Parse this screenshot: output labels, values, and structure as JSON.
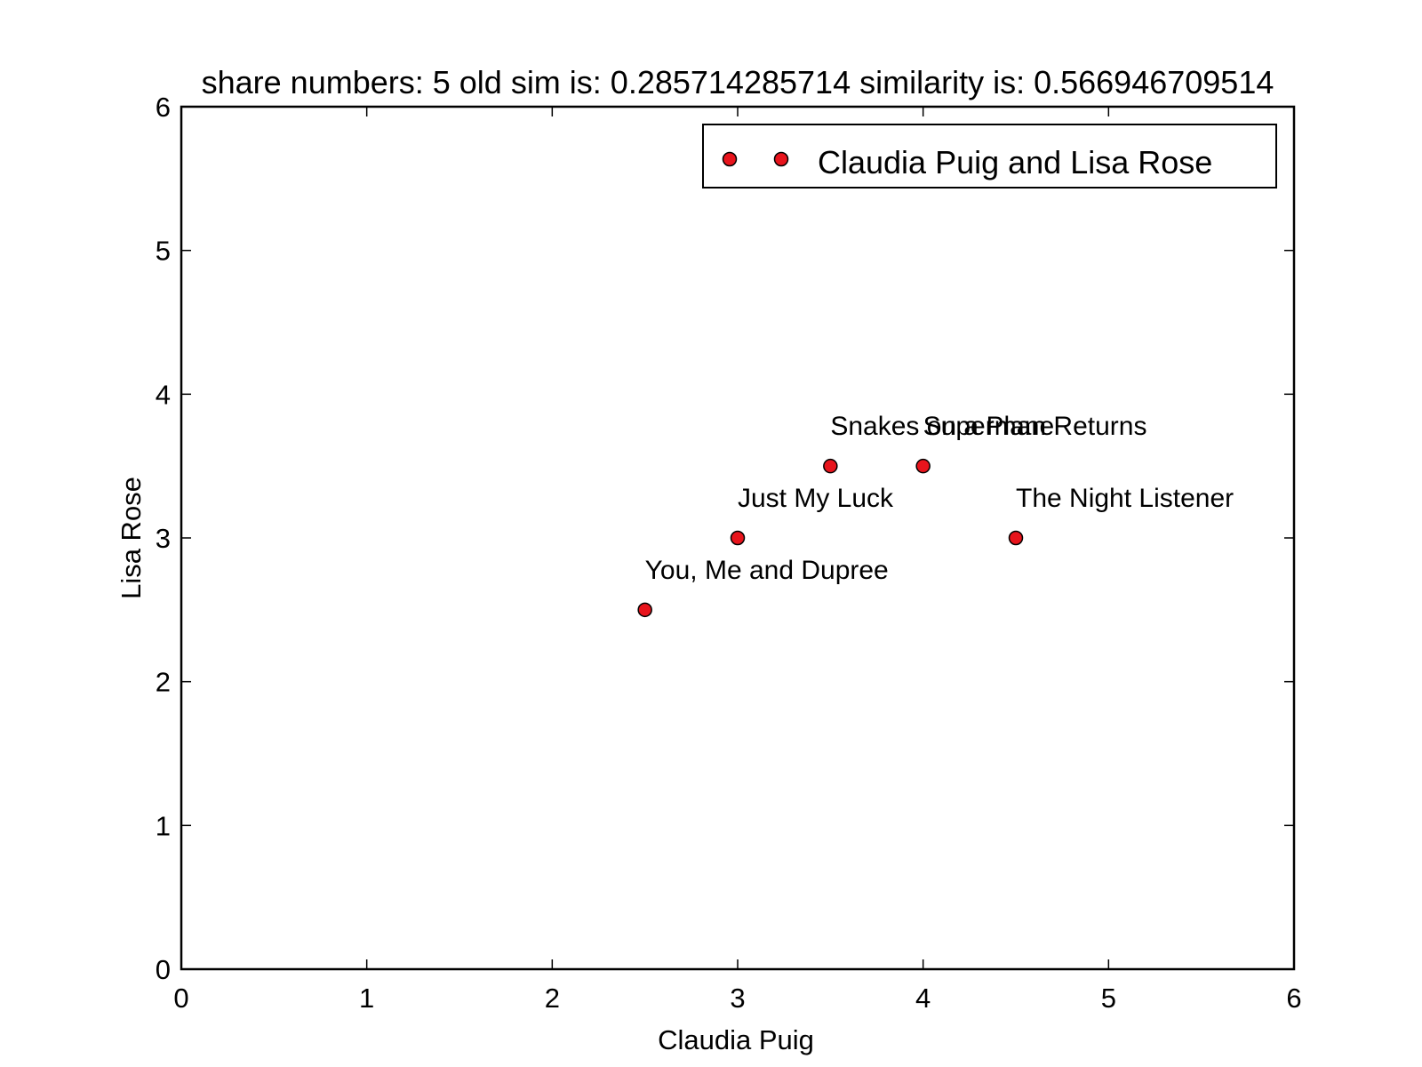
{
  "chart_data": {
    "type": "scatter",
    "title": "share numbers: 5 old sim is: 0.285714285714 similarity is: 0.566946709514",
    "xlabel": "Claudia Puig",
    "ylabel": "Lisa Rose",
    "xlim": [
      0,
      6
    ],
    "ylim": [
      0,
      6
    ],
    "xticks": [
      "0",
      "1",
      "2",
      "3",
      "4",
      "5",
      "6"
    ],
    "yticks": [
      "0",
      "1",
      "2",
      "3",
      "4",
      "5",
      "6"
    ],
    "grid": false,
    "legend": {
      "placement": "top-right",
      "entries": [
        "Claudia Puig and Lisa Rose"
      ]
    },
    "marker_color": "#e8141c",
    "series": [
      {
        "name": "Claudia Puig and Lisa Rose",
        "points": [
          {
            "x": 2.5,
            "y": 2.5,
            "label": "You, Me and Dupree"
          },
          {
            "x": 3.0,
            "y": 3.0,
            "label": "Just My Luck"
          },
          {
            "x": 3.5,
            "y": 3.5,
            "label": "Snakes on a Plane"
          },
          {
            "x": 4.0,
            "y": 3.5,
            "label": "Superman Returns"
          },
          {
            "x": 4.5,
            "y": 3.0,
            "label": "The Night Listener"
          }
        ]
      }
    ]
  }
}
